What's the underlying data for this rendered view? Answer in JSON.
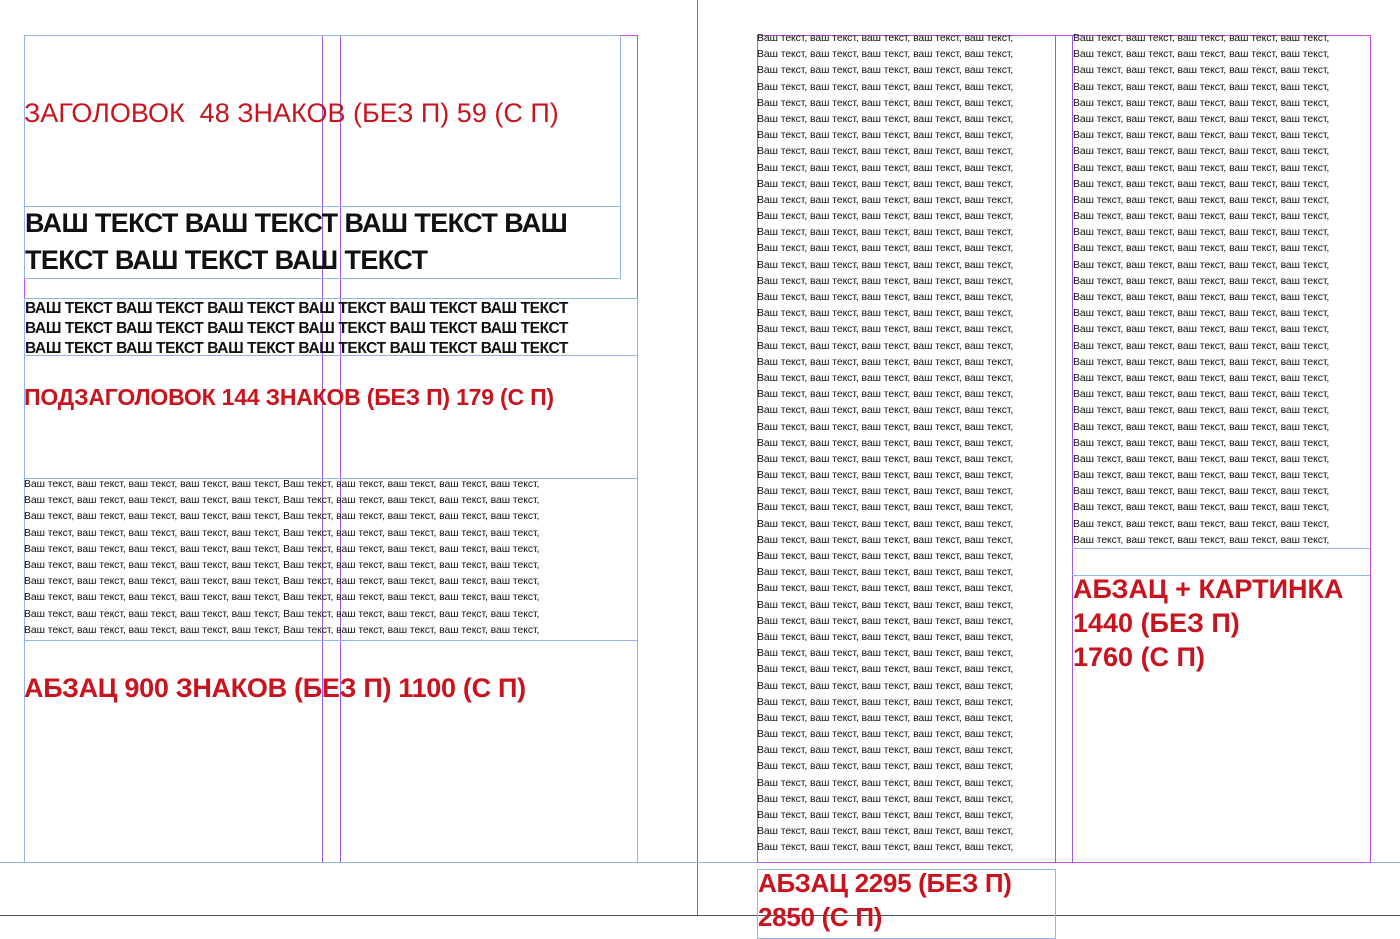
{
  "left_page": {
    "heading": "ЗАГОЛОВОК  48 ЗНАКОВ (БЕЗ П) 59 (С П)",
    "big_text_lines": [
      "ВАШ ТЕКСТ ВАШ ТЕКСТ ВАШ ТЕКСТ ВАШ",
      "ТЕКСТ ВАШ ТЕКСТ ВАШ ТЕКСТ"
    ],
    "caps_text_lines": [
      "ВАШ ТЕКСТ ВАШ ТЕКСТ ВАШ ТЕКСТ ВАШ ТЕКСТ ВАШ ТЕКСТ ВАШ ТЕКСТ",
      "ВАШ ТЕКСТ ВАШ ТЕКСТ ВАШ ТЕКСТ ВАШ ТЕКСТ ВАШ ТЕКСТ ВАШ ТЕКСТ",
      "ВАШ ТЕКСТ ВАШ ТЕКСТ ВАШ ТЕКСТ ВАШ ТЕКСТ ВАШ ТЕКСТ ВАШ ТЕКСТ"
    ],
    "subheading": "ПОДЗАГОЛОВОК 144 ЗНАКОВ (БЕЗ П) 179 (С П)",
    "body_line": "Ваш текст, ваш текст, ваш текст, ваш текст, ваш текст, Ваш текст, ваш текст, ваш текст, ваш текст, ваш текст,",
    "paragraph_label": "АБЗАЦ 900 ЗНАКОВ (БЕЗ П) 1100 (С П)"
  },
  "right_page": {
    "column_line": "Ваш текст, ваш текст, ваш текст, ваш текст, ваш текст,",
    "picture_label_lines": [
      "АБЗАЦ + КАРТИНКА",
      "1440 (БЕЗ П)",
      "1760 (С П)"
    ],
    "paragraph_label_lines": [
      "АБЗАЦ 2295 (БЕЗ П)",
      "2850 (С П)"
    ]
  },
  "colors": {
    "accent_red": "#c8141e",
    "margin_guide": "#c64ee8",
    "frame_guide": "#8fb4f0"
  }
}
